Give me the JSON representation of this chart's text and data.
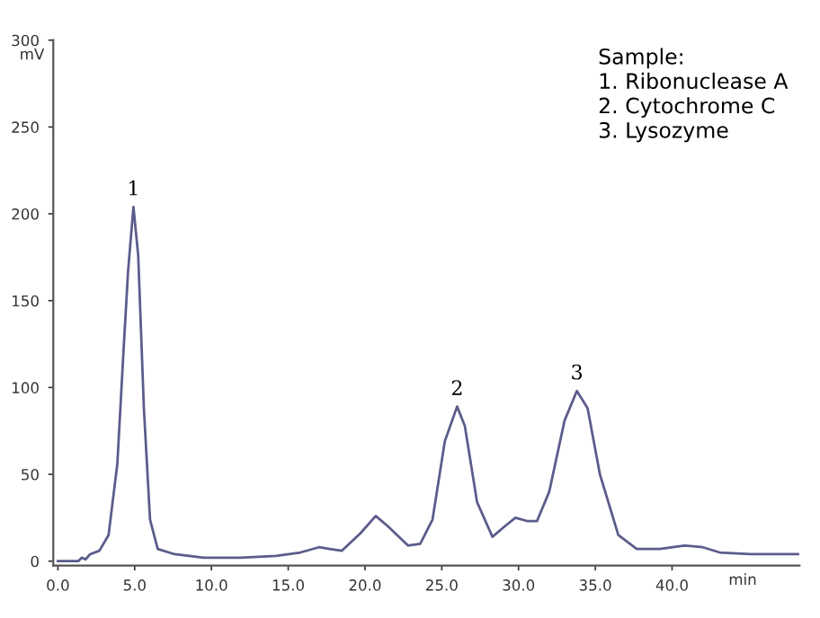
{
  "chart_data": {
    "type": "line",
    "ylabel": "mV",
    "xlabel": "min",
    "x": [
      0,
      1.33,
      1.56,
      1.8,
      2.1,
      2.7,
      3.3,
      3.87,
      4.26,
      4.57,
      4.92,
      5.23,
      5.6,
      6.0,
      6.5,
      7.6,
      9.5,
      11.9,
      14.2,
      15.8,
      17,
      17.7,
      18.5,
      19.7,
      20.7,
      21.5,
      22.8,
      23.6,
      24.4,
      25.2,
      26.0,
      26.5,
      27.3,
      28.3,
      29.1,
      29.8,
      30.6,
      31.2,
      32.0,
      33,
      33.8,
      34.5,
      35.3,
      36.5,
      37.7,
      39.2,
      40.8,
      42,
      43.1,
      45.1,
      48.2
    ],
    "series": [
      {
        "color": "#5c5c8c",
        "values": [
          0,
          0,
          2,
          1,
          4,
          6,
          15,
          56,
          119,
          167,
          204,
          176,
          88,
          24,
          7,
          4,
          2,
          2,
          3,
          5,
          8,
          7,
          6,
          16,
          26,
          20,
          9,
          10,
          24,
          69,
          89,
          78,
          34,
          14,
          20,
          25,
          23,
          23,
          40,
          81,
          98,
          88,
          50,
          15,
          7,
          7,
          9,
          8,
          5,
          4,
          4
        ]
      }
    ],
    "xlim": [
      -0.3,
      48.3
    ],
    "ylim": [
      -2.5,
      300
    ],
    "xticks": [
      {
        "value": 0,
        "label": "0.0"
      },
      {
        "value": 5,
        "label": "5.0"
      },
      {
        "value": 10,
        "label": "10.0"
      },
      {
        "value": 15,
        "label": "15.0"
      },
      {
        "value": 20,
        "label": "20.0"
      },
      {
        "value": 25,
        "label": "25.0"
      },
      {
        "value": 30,
        "label": "30.0"
      },
      {
        "value": 35,
        "label": "35.0"
      },
      {
        "value": 40,
        "label": "40.0"
      }
    ],
    "yticks": [
      0,
      50,
      100,
      150,
      200,
      250,
      300
    ],
    "grid": false,
    "legend": false,
    "marker": "none",
    "line_style": "solid",
    "annotations": [
      {
        "text": "1",
        "x": 4.92,
        "y": 204
      },
      {
        "text": "2",
        "x": 26.0,
        "y": 89
      },
      {
        "text": "3",
        "x": 33.8,
        "y": 98
      },
      "Sample:\n1. Ribonuclease A\n2. Cytochrome C\n3. Lysozyme"
    ]
  }
}
